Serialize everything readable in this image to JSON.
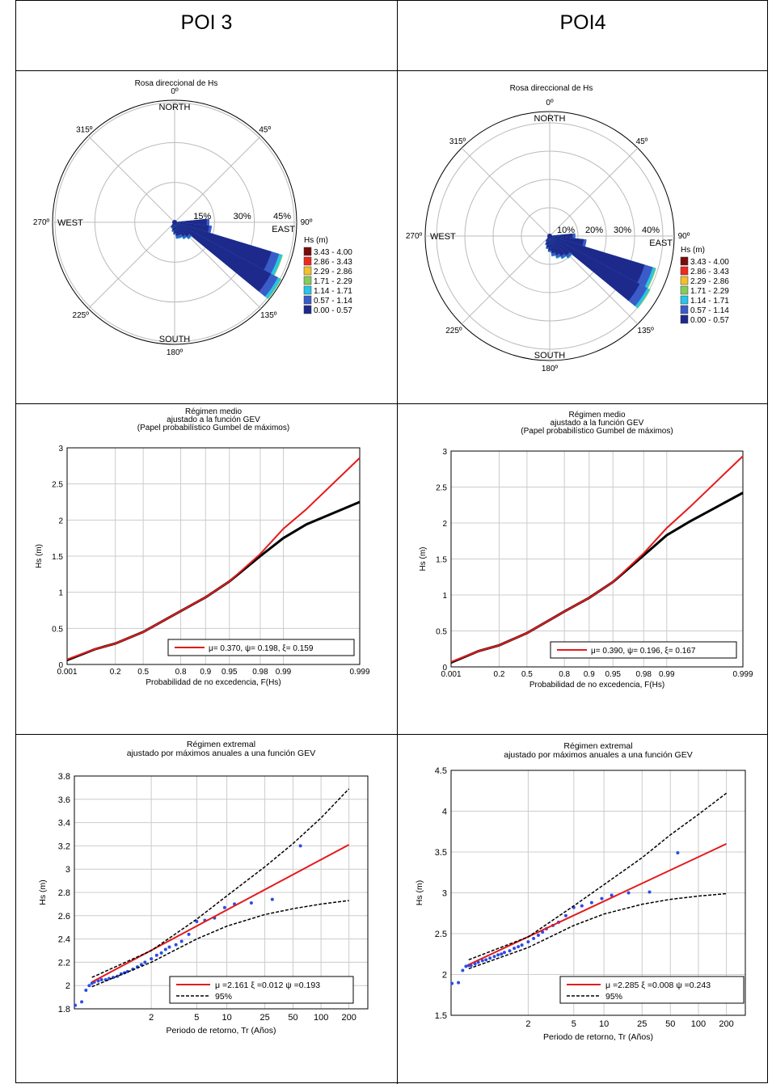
{
  "headers": [
    "POI 3",
    "POI4"
  ],
  "roses": [
    {
      "title": "Rosa direccional de  Hs",
      "compass": {
        "north": "NORTH",
        "south": "SOUTH",
        "east": "EAST",
        "west": "WEST"
      },
      "angle_labels": [
        "0º",
        "45º",
        "90º",
        "135º",
        "180º",
        "225º",
        "270º",
        "315º"
      ],
      "ring_labels": [
        "15%",
        "30%",
        "45%"
      ],
      "legend_title": "Hs (m)",
      "legend": [
        {
          "label": "3.43 - 4.00",
          "color": "#7a0c0c"
        },
        {
          "label": "2.86 - 3.43",
          "color": "#ee2a1e"
        },
        {
          "label": "2.29 - 2.86",
          "color": "#f2c02a"
        },
        {
          "label": "1.71 - 2.29",
          "color": "#86cc5a"
        },
        {
          "label": "1.14 - 1.71",
          "color": "#29c4e6"
        },
        {
          "label": "0.57 - 1.14",
          "color": "#3a5cc8"
        },
        {
          "label": "0.00 - 0.57",
          "color": "#1d2a8c"
        }
      ],
      "chart_data": {
        "type": "polar",
        "ring_max_pct": 45,
        "ring_step_pct": 15,
        "direction_deg": [
          90,
          101.25,
          112.5,
          123.75,
          135,
          146.25,
          157.5,
          168.75,
          180,
          191.25,
          202.5,
          213.75,
          225
        ],
        "series": [
          {
            "bin": "0.00 - 0.57",
            "values": [
              12,
              13,
              38,
              41,
              7,
              6,
              5,
              5,
              4,
              3,
              2,
              2,
              1
            ]
          },
          {
            "bin": "0.57 - 1.14",
            "values": [
              1,
              1,
              3,
              3,
              1,
              1,
              1,
              1,
              0.5,
              0.5,
              0.5,
              0.3,
              0.2
            ]
          },
          {
            "bin": "1.14 - 1.71",
            "values": [
              0,
              0,
              1.2,
              1.2,
              0.3,
              0.2,
              0.3,
              0.2,
              0.1,
              0.1,
              0,
              0,
              0
            ]
          },
          {
            "bin": "1.71 - 2.29",
            "values": [
              0,
              0,
              0.3,
              0.3,
              0,
              0,
              0,
              0,
              0,
              0,
              0,
              0,
              0
            ]
          }
        ]
      }
    },
    {
      "title": "Rosa direccional de  Hs",
      "compass": {
        "north": "NORTH",
        "south": "SOUTH",
        "east": "EAST",
        "west": "WEST"
      },
      "angle_labels": [
        "0º",
        "45º",
        "90º",
        "135º",
        "180º",
        "225º",
        "270º",
        "315º"
      ],
      "ring_labels": [
        "10%",
        "20%",
        "30%",
        "40%"
      ],
      "legend_title": "Hs (m)",
      "legend": [
        {
          "label": "3.43 - 4.00",
          "color": "#7a0c0c"
        },
        {
          "label": "2.86 - 3.43",
          "color": "#ee2a1e"
        },
        {
          "label": "2.29 - 2.86",
          "color": "#f2c02a"
        },
        {
          "label": "1.71 - 2.29",
          "color": "#86cc5a"
        },
        {
          "label": "1.14 - 1.71",
          "color": "#29c4e6"
        },
        {
          "label": "0.57 - 1.14",
          "color": "#3a5cc8"
        },
        {
          "label": "0.00 - 0.57",
          "color": "#1d2a8c"
        }
      ],
      "chart_data": {
        "type": "polar",
        "ring_max_pct": 40,
        "ring_step_pct": 10,
        "direction_deg": [
          90,
          101.25,
          112.5,
          123.75,
          135,
          146.25,
          157.5,
          168.75,
          180,
          191.25,
          202.5,
          213.75,
          225
        ],
        "series": [
          {
            "bin": "0.00 - 0.57",
            "values": [
              8,
              12,
              35,
              36,
              9,
              8,
              7,
              6,
              5,
              4,
              3,
              2,
              1
            ]
          },
          {
            "bin": "0.57 - 1.14",
            "values": [
              1,
              1,
              3,
              3,
              1,
              1,
              1,
              1,
              0.5,
              0.5,
              0.4,
              0.3,
              0.2
            ]
          },
          {
            "bin": "1.14 - 1.71",
            "values": [
              0,
              0,
              1,
              1,
              0.3,
              0.2,
              0.3,
              0.2,
              0.1,
              0.1,
              0,
              0,
              0
            ]
          },
          {
            "bin": "1.71 - 2.29",
            "values": [
              0,
              0,
              0.3,
              0.3,
              0,
              0,
              0,
              0,
              0,
              0,
              0,
              0,
              0
            ]
          }
        ]
      }
    }
  ],
  "medios": [
    {
      "title_lines": [
        "Régimen medio",
        "ajustado a la función GEV",
        "(Papel probabilístico Gumbel de máximos)"
      ],
      "xlabel": "Probabilidad de no excedencia, F(Hs)",
      "ylabel": "Hs (m)",
      "xtick_labels": [
        "0.001",
        "0.2",
        "0.5",
        "0.8",
        "0.9",
        "0.95",
        "0.98",
        "0.99",
        "0.999"
      ],
      "ytick_labels": [
        "0",
        "0.5",
        "1",
        "1.5",
        "2",
        "2.5",
        "3"
      ],
      "legend": "μ= 0.370, ψ= 0.198, ξ= 0.159",
      "chart_data": {
        "type": "line",
        "xscale": "gumbel",
        "ylim": [
          0,
          3
        ],
        "series": [
          {
            "name": "μ= 0.370, ψ= 0.198, ξ= 0.159",
            "color": "#e41a1c",
            "x": [
              0.001,
              0.05,
              0.2,
              0.5,
              0.8,
              0.9,
              0.95,
              0.98,
              0.99,
              0.995,
              0.999
            ],
            "y": [
              0.07,
              0.21,
              0.29,
              0.45,
              0.74,
              0.93,
              1.15,
              1.53,
              1.88,
              2.15,
              2.86
            ]
          },
          {
            "color": "#000000",
            "x": [
              0.001,
              0.05,
              0.2,
              0.5,
              0.8,
              0.9,
              0.95,
              0.98,
              0.99,
              0.995,
              0.999
            ],
            "y": [
              0.06,
              0.21,
              0.29,
              0.45,
              0.74,
              0.93,
              1.15,
              1.5,
              1.75,
              1.94,
              2.25
            ]
          }
        ]
      }
    },
    {
      "title_lines": [
        "Régimen medio",
        "ajustado a la función GEV",
        "(Papel probabilístico Gumbel de máximos)"
      ],
      "xlabel": "Probabilidad de no excedencia, F(Hs)",
      "ylabel": "Hs (m)",
      "xtick_labels": [
        "0.001",
        "0.2",
        "0.5",
        "0.8",
        "0.9",
        "0.95",
        "0.98",
        "0.99",
        "0.999"
      ],
      "ytick_labels": [
        "0",
        "0.5",
        "1",
        "1.5",
        "2",
        "2.5",
        "3"
      ],
      "legend": "μ= 0.390, ψ= 0.196, ξ= 0.167",
      "chart_data": {
        "type": "line",
        "xscale": "gumbel",
        "ylim": [
          0,
          3
        ],
        "series": [
          {
            "name": "μ= 0.390, ψ= 0.196, ξ= 0.167",
            "color": "#e41a1c",
            "x": [
              0.001,
              0.05,
              0.2,
              0.5,
              0.8,
              0.9,
              0.95,
              0.98,
              0.99,
              0.995,
              0.999
            ],
            "y": [
              0.07,
              0.22,
              0.3,
              0.47,
              0.77,
              0.96,
              1.18,
              1.58,
              1.93,
              2.22,
              2.93
            ]
          },
          {
            "color": "#000000",
            "x": [
              0.001,
              0.05,
              0.2,
              0.5,
              0.8,
              0.9,
              0.95,
              0.98,
              0.99,
              0.995,
              0.999
            ],
            "y": [
              0.06,
              0.22,
              0.3,
              0.47,
              0.77,
              0.96,
              1.18,
              1.55,
              1.83,
              2.02,
              2.42
            ]
          }
        ]
      }
    }
  ],
  "extremales": [
    {
      "title_lines": [
        "Régimen extremal",
        "ajustado por máximos anuales a una función GEV"
      ],
      "xlabel": "Periodo de retorno, Tr (Años)",
      "ylabel": "Hs (m)",
      "xtick_labels": [
        "2",
        "5",
        "10",
        "25",
        "50",
        "100",
        "200"
      ],
      "ytick_labels": [
        "1.8",
        "2",
        "2.2",
        "2.4",
        "2.6",
        "2.8",
        "3",
        "3.2",
        "3.4",
        "3.6",
        "3.8"
      ],
      "legend": [
        "μ =2.161 ξ =0.012 ψ =0.193",
        "95%"
      ],
      "chart_data": {
        "type": "line",
        "xscale": "gumbel_return_period",
        "ylim": [
          1.8,
          3.8
        ],
        "series": [
          {
            "name": "μ =2.161 ξ =0.012 ψ =0.193",
            "color": "#e41a1c",
            "x": [
              1.05,
              200
            ],
            "y": [
              2.03,
              3.21
            ]
          },
          {
            "name": "95%",
            "style": "dashed",
            "x": [
              1.05,
              2,
              5,
              10,
              25,
              50,
              100,
              200
            ],
            "y": [
              2.07,
              2.3,
              2.57,
              2.77,
              3.02,
              3.22,
              3.44,
              3.69
            ]
          },
          {
            "style": "dashed",
            "x": [
              1.05,
              2,
              5,
              10,
              25,
              50,
              100,
              200
            ],
            "y": [
              1.99,
              2.2,
              2.4,
              2.51,
              2.61,
              2.66,
              2.7,
              2.73
            ]
          }
        ],
        "points": {
          "x": [
            1.01,
            1.02,
            1.03,
            1.04,
            1.05,
            1.06,
            1.08,
            1.1,
            1.13,
            1.16,
            1.2,
            1.25,
            1.3,
            1.35,
            1.4,
            1.5,
            1.6,
            1.7,
            1.8,
            2.0,
            2.2,
            2.4,
            2.6,
            2.8,
            3.2,
            3.6,
            4.2,
            5.0,
            6.0,
            7.5,
            9.5,
            12,
            18,
            30,
            60
          ],
          "y": [
            1.83,
            1.86,
            1.96,
            2.0,
            2.02,
            2.03,
            2.04,
            2.05,
            2.05,
            2.06,
            2.07,
            2.08,
            2.1,
            2.11,
            2.12,
            2.14,
            2.16,
            2.18,
            2.2,
            2.23,
            2.26,
            2.28,
            2.31,
            2.33,
            2.35,
            2.38,
            2.44,
            2.55,
            2.56,
            2.58,
            2.67,
            2.7,
            2.71,
            2.74,
            3.2
          ]
        }
      }
    },
    {
      "title_lines": [
        "Régimen extremal",
        "ajustado por máximos anuales a una función GEV"
      ],
      "xlabel": "Periodo de retorno, Tr (Años)",
      "ylabel": "Hs (m)",
      "xtick_labels": [
        "2",
        "5",
        "10",
        "25",
        "50",
        "100",
        "200"
      ],
      "ytick_labels": [
        "1.5",
        "2",
        "2.5",
        "3",
        "3.5",
        "4",
        "4.5"
      ],
      "legend": [
        "μ =2.285 ξ =0.008 ψ =0.243",
        "95%"
      ],
      "chart_data": {
        "type": "line",
        "xscale": "gumbel_return_period",
        "ylim": [
          1.5,
          4.5
        ],
        "series": [
          {
            "name": "μ =2.285 ξ =0.008 ψ =0.243",
            "color": "#e41a1c",
            "x": [
              1.05,
              200
            ],
            "y": [
              2.12,
              3.6
            ]
          },
          {
            "name": "95%",
            "style": "dashed",
            "x": [
              1.05,
              2,
              5,
              10,
              25,
              50,
              100,
              200
            ],
            "y": [
              2.18,
              2.46,
              2.84,
              3.1,
              3.43,
              3.71,
              3.96,
              4.22
            ]
          },
          {
            "style": "dashed",
            "x": [
              1.05,
              2,
              5,
              10,
              25,
              50,
              100,
              200
            ],
            "y": [
              2.07,
              2.33,
              2.6,
              2.74,
              2.86,
              2.92,
              2.96,
              2.99
            ]
          }
        ],
        "points": {
          "x": [
            1.01,
            1.02,
            1.03,
            1.04,
            1.05,
            1.06,
            1.08,
            1.1,
            1.13,
            1.16,
            1.2,
            1.25,
            1.3,
            1.35,
            1.4,
            1.5,
            1.6,
            1.7,
            1.8,
            2.0,
            2.2,
            2.4,
            2.6,
            2.8,
            3.2,
            3.6,
            4.2,
            5.0,
            6.0,
            7.5,
            9.5,
            12,
            18,
            30,
            60
          ],
          "y": [
            1.89,
            1.9,
            2.05,
            2.1,
            2.11,
            2.11,
            2.13,
            2.15,
            2.17,
            2.18,
            2.2,
            2.22,
            2.24,
            2.25,
            2.27,
            2.29,
            2.32,
            2.34,
            2.36,
            2.4,
            2.44,
            2.48,
            2.52,
            2.56,
            2.6,
            2.64,
            2.72,
            2.82,
            2.84,
            2.88,
            2.93,
            2.97,
            3.0,
            3.01,
            3.49
          ]
        }
      }
    }
  ]
}
